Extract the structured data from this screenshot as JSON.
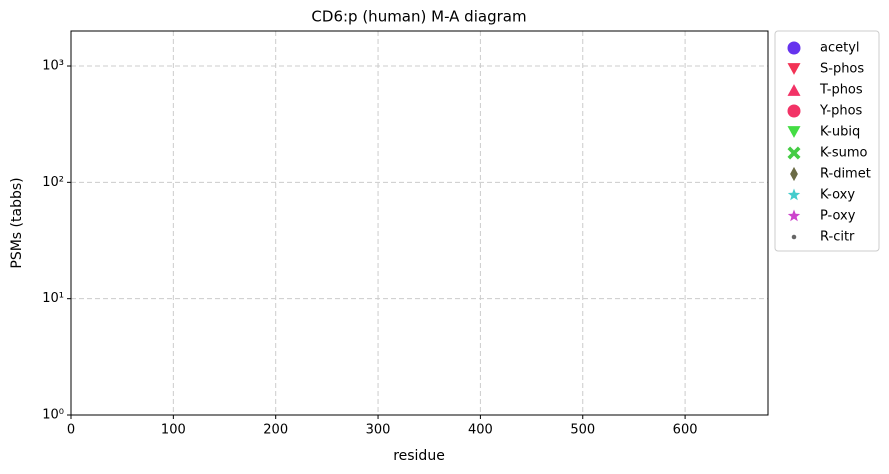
{
  "chart_data": {
    "type": "scatter",
    "title": "CD6:p (human) M-A diagram",
    "x_label": "residue",
    "y_label": "PSMs (tabbs)",
    "xlim": [
      0,
      681
    ],
    "xticks": [
      0,
      100,
      200,
      300,
      400,
      500,
      600
    ],
    "ylim": [
      1,
      2000
    ],
    "log_y": true,
    "yticks": [
      {
        "value": 1,
        "label": "10⁰"
      },
      {
        "value": 10,
        "label": "10¹"
      },
      {
        "value": 100,
        "label": "10²"
      },
      {
        "value": 1000,
        "label": "10³"
      }
    ],
    "grid": true,
    "legend": "outside-right",
    "series": [
      {
        "name": "acetyl",
        "color": "#6633ee",
        "marker": "circle",
        "x": [],
        "values": []
      },
      {
        "name": "S-phos",
        "color": "#f23355",
        "marker": "triangle-down",
        "x": [],
        "values": []
      },
      {
        "name": "T-phos",
        "color": "#f23366",
        "marker": "triangle-up",
        "x": [],
        "values": []
      },
      {
        "name": "Y-phos",
        "color": "#f23366",
        "marker": "circle",
        "x": [],
        "values": []
      },
      {
        "name": "K-ubiq",
        "color": "#44dd44",
        "marker": "triangle-down",
        "x": [],
        "values": []
      },
      {
        "name": "K-sumo",
        "color": "#44cc44",
        "marker": "x",
        "x": [],
        "values": []
      },
      {
        "name": "R-dimet",
        "color": "#6b6b45",
        "marker": "thin-diamond",
        "x": [],
        "values": []
      },
      {
        "name": "K-oxy",
        "color": "#44cccc",
        "marker": "star",
        "x": [],
        "values": []
      },
      {
        "name": "P-oxy",
        "color": "#cc44cc",
        "marker": "star",
        "x": [],
        "values": []
      },
      {
        "name": "R-citr",
        "color": "#666666",
        "marker": "point",
        "x": [],
        "values": []
      }
    ]
  }
}
